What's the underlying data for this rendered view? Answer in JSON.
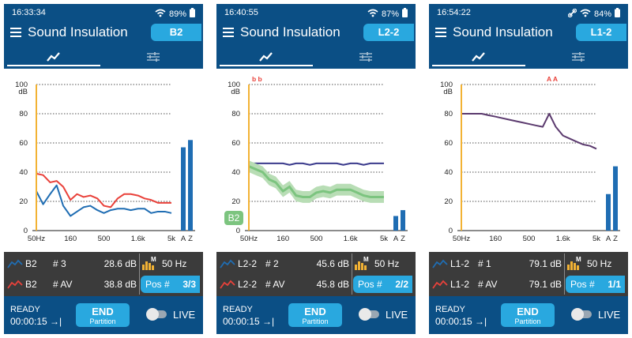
{
  "colors": {
    "bar_blue": "#0b4f85",
    "accent": "#29a8df",
    "info_bg": "#3b3b3b",
    "green_series": "#7cc47f",
    "red_series": "#e9413a",
    "navy_series": "#3a3a8c",
    "purple_series": "#5b3a6e",
    "cursor": "#f2b234"
  },
  "screens": [
    {
      "status": {
        "time": "16:33:34",
        "battery": "89%",
        "icons": [
          "wifi-icon",
          "battery-icon"
        ]
      },
      "title": "Sound Insulation",
      "position_label": "B2",
      "tabs": [
        {
          "icon": "graph-icon"
        },
        {
          "icon": "sliders-icon"
        }
      ],
      "chart": {
        "y_unit": "dB",
        "y_ticks": [
          "100",
          "80",
          "60",
          "40",
          "20",
          "0"
        ],
        "x_ticks": [
          "50Hz",
          "160",
          "500",
          "1.6k",
          "5k"
        ],
        "az_labels": [
          "A",
          "Z"
        ],
        "top_markers": "",
        "side_badge": ""
      },
      "info": {
        "rows": [
          {
            "name": "B2",
            "num": "# 3",
            "value": "28.6 dB",
            "icon": "blue-line-icon"
          },
          {
            "name": "B2",
            "num": "# AV",
            "value": "38.8 dB",
            "icon": "red-line-icon"
          }
        ],
        "freq": "50 Hz",
        "pos_label": "Pos #",
        "pos_value": "3/3"
      },
      "bottom": {
        "ready": "READY",
        "timer": "00:00:15 →|",
        "end_label": "END",
        "end_sub": "Partition",
        "live": "LIVE"
      }
    },
    {
      "status": {
        "time": "16:40:55",
        "battery": "87%",
        "icons": [
          "wifi-icon",
          "battery-icon"
        ]
      },
      "title": "Sound Insulation",
      "position_label": "L2-2",
      "tabs": [
        {
          "icon": "graph-icon"
        },
        {
          "icon": "sliders-icon"
        }
      ],
      "chart": {
        "y_unit": "dB",
        "y_ticks": [
          "100",
          "80",
          "60",
          "40",
          "20",
          "0"
        ],
        "x_ticks": [
          "50Hz",
          "160",
          "500",
          "1.6k",
          "5k"
        ],
        "az_labels": [
          "A",
          "Z"
        ],
        "top_markers": "b b",
        "side_badge": "B2"
      },
      "info": {
        "rows": [
          {
            "name": "L2-2",
            "num": "# 2",
            "value": "45.6 dB",
            "icon": "blue-line-icon"
          },
          {
            "name": "L2-2",
            "num": "# AV",
            "value": "45.8 dB",
            "icon": "red-line-icon"
          }
        ],
        "freq": "50 Hz",
        "pos_label": "Pos #",
        "pos_value": "2/2"
      },
      "bottom": {
        "ready": "READY",
        "timer": "00:00:15 →|",
        "end_label": "END",
        "end_sub": "Partition",
        "live": "LIVE"
      }
    },
    {
      "status": {
        "time": "16:54:22",
        "battery": "84%",
        "icons": [
          "link-icon",
          "wifi-icon",
          "battery-icon"
        ]
      },
      "title": "Sound Insulation",
      "position_label": "L1-2",
      "tabs": [
        {
          "icon": "graph-icon"
        },
        {
          "icon": "sliders-icon"
        }
      ],
      "chart": {
        "y_unit": "dB",
        "y_ticks": [
          "100",
          "80",
          "60",
          "40",
          "20",
          "0"
        ],
        "x_ticks": [
          "50Hz",
          "160",
          "500",
          "1.6k",
          "5k"
        ],
        "az_labels": [
          "A",
          "Z"
        ],
        "top_markers": "A A",
        "side_badge": ""
      },
      "info": {
        "rows": [
          {
            "name": "L1-2",
            "num": "# 1",
            "value": "79.1 dB",
            "icon": "blue-line-icon"
          },
          {
            "name": "L1-2",
            "num": "# AV",
            "value": "79.1 dB",
            "icon": "red-line-icon"
          }
        ],
        "freq": "50 Hz",
        "pos_label": "Pos #",
        "pos_value": "1/1"
      },
      "bottom": {
        "ready": "READY",
        "timer": "00:00:15 →|",
        "end_label": "END",
        "end_sub": "Partition",
        "live": "LIVE"
      }
    }
  ],
  "chart_data": [
    {
      "type": "line",
      "x_scale": "log",
      "xlim": [
        50,
        5000
      ],
      "ylim": [
        0,
        100
      ],
      "x": [
        50,
        63,
        80,
        100,
        125,
        160,
        200,
        250,
        315,
        400,
        500,
        630,
        800,
        1000,
        1250,
        1600,
        2000,
        2500,
        3150,
        4000,
        5000
      ],
      "series": [
        {
          "name": "B2 # 3",
          "color": "#1f6db3",
          "values": [
            27,
            18,
            25,
            31,
            17,
            10,
            13,
            16,
            17,
            14,
            12,
            14,
            15,
            15,
            14,
            15,
            15,
            12,
            13,
            13,
            12
          ]
        },
        {
          "name": "B2 # AV",
          "color": "#e9413a",
          "values": [
            39,
            38,
            33,
            34,
            30,
            21,
            25,
            23,
            24,
            22,
            17,
            16,
            22,
            25,
            25,
            24,
            22,
            21,
            19,
            19,
            19
          ]
        }
      ],
      "bars": {
        "A": 57,
        "Z": 62
      }
    },
    {
      "type": "line",
      "x_scale": "log",
      "xlim": [
        50,
        5000
      ],
      "ylim": [
        0,
        100
      ],
      "x": [
        50,
        63,
        80,
        100,
        125,
        160,
        200,
        250,
        315,
        400,
        500,
        630,
        800,
        1000,
        1250,
        1600,
        2000,
        2500,
        3150,
        4000,
        5000
      ],
      "series": [
        {
          "name": "L2-2 # 2",
          "color": "#3a3a8c",
          "values": [
            46,
            46,
            46,
            46,
            46,
            46,
            45,
            46,
            46,
            45,
            46,
            46,
            46,
            46,
            45,
            46,
            46,
            45,
            46,
            46,
            46
          ]
        },
        {
          "name": "B2",
          "color": "#7cc47f",
          "band": true,
          "values": [
            44,
            42,
            40,
            35,
            33,
            27,
            30,
            24,
            23,
            23,
            26,
            27,
            26,
            28,
            28,
            28,
            26,
            24,
            23,
            23,
            23
          ],
          "spread": 4
        }
      ],
      "bars": {
        "A": 10,
        "Z": 14
      }
    },
    {
      "type": "line",
      "x_scale": "log",
      "xlim": [
        50,
        5000
      ],
      "ylim": [
        0,
        100
      ],
      "x": [
        50,
        63,
        80,
        100,
        125,
        160,
        200,
        250,
        315,
        400,
        500,
        630,
        800,
        1000,
        1250,
        1600,
        2000,
        2500,
        3150,
        4000,
        5000
      ],
      "series": [
        {
          "name": "L1-2 # 1",
          "color": "#5b3a6e",
          "values": [
            80,
            80,
            80,
            80,
            79,
            78,
            77,
            76,
            75,
            74,
            73,
            72,
            71,
            80,
            71,
            65,
            63,
            61,
            59,
            58,
            56
          ]
        }
      ],
      "bars": {
        "A": 25,
        "Z": 44
      }
    }
  ]
}
